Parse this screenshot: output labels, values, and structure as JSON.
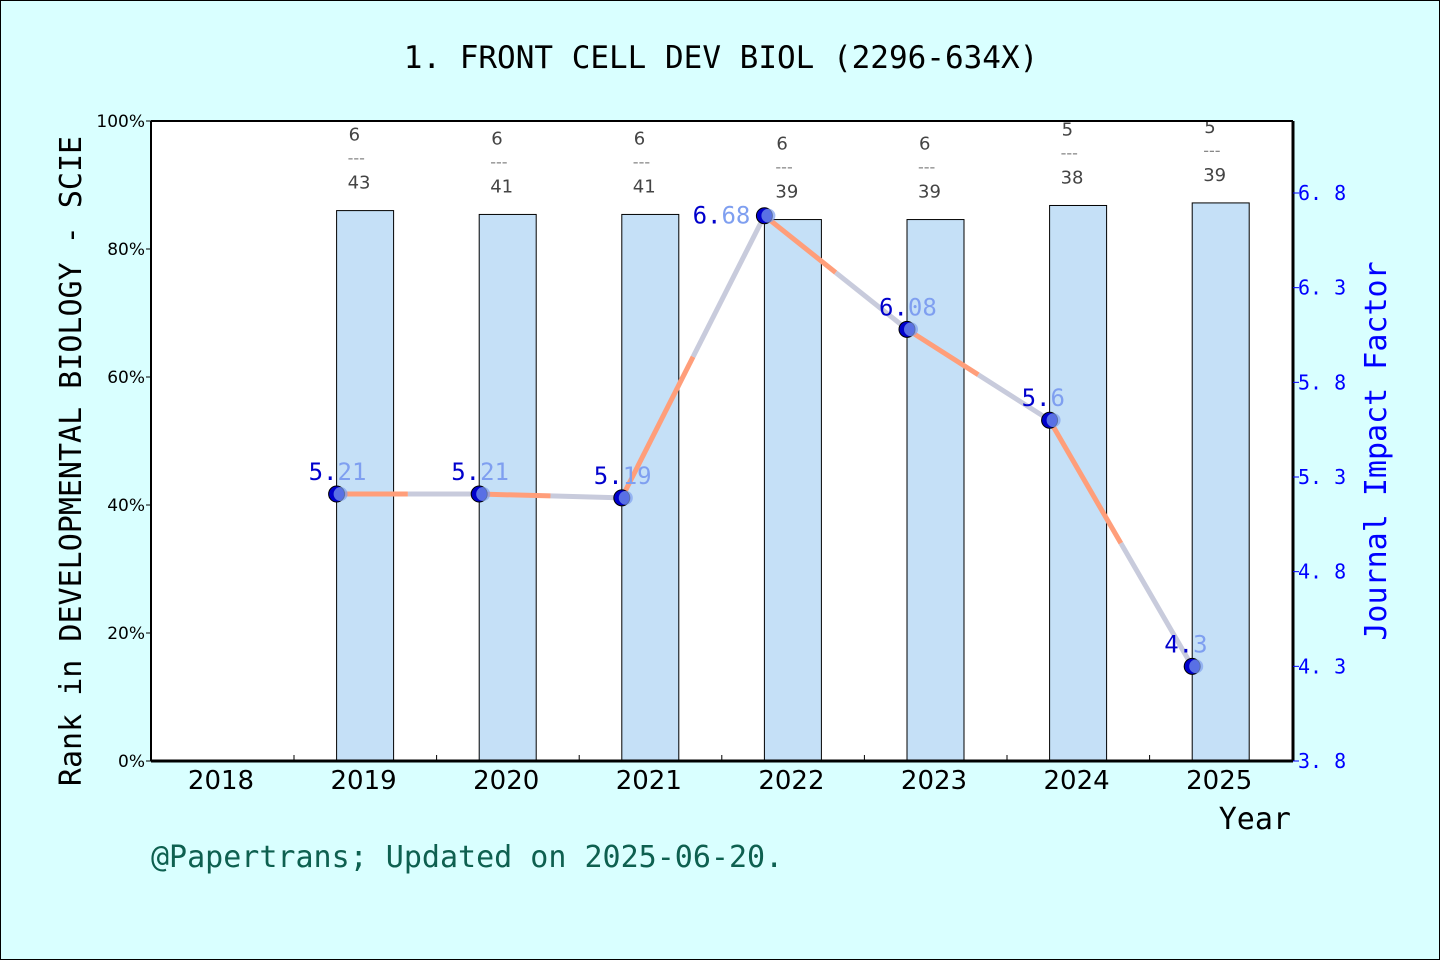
{
  "chart_data": {
    "type": "bar+line",
    "title": "1. FRONT CELL DEV BIOL (2296-634X)",
    "xlabel": "Year",
    "ylabel_left": "Rank in DEVELOPMENTAL BIOLOGY - SCIE",
    "ylabel_right": "Journal Impact Factor",
    "categories": [
      "2018",
      "2019",
      "2020",
      "2021",
      "2022",
      "2023",
      "2024",
      "2025"
    ],
    "left_axis": {
      "ylim": [
        0,
        100
      ],
      "ticks": [
        "0%",
        "20%",
        "40%",
        "60%",
        "80%",
        "100%"
      ]
    },
    "right_axis": {
      "ylim": [
        3.8,
        7.2
      ],
      "ticks": [
        "3.8",
        "4.3",
        "4.8",
        "5.3",
        "5.8",
        "6.3",
        "6.8"
      ]
    },
    "rank_bars": [
      {
        "year": "2019",
        "rank": 6,
        "total": 43,
        "percentile": 86.0
      },
      {
        "year": "2020",
        "rank": 6,
        "total": 41,
        "percentile": 85.4
      },
      {
        "year": "2021",
        "rank": 6,
        "total": 41,
        "percentile": 85.4
      },
      {
        "year": "2022",
        "rank": 6,
        "total": 39,
        "percentile": 84.6
      },
      {
        "year": "2023",
        "rank": 6,
        "total": 39,
        "percentile": 84.6
      },
      {
        "year": "2024",
        "rank": 5,
        "total": 38,
        "percentile": 86.8
      },
      {
        "year": "2025",
        "rank": 5,
        "total": 39,
        "percentile": 87.2
      }
    ],
    "impact_factor": [
      {
        "year": "2019",
        "value": 5.21,
        "label": [
          "5.",
          "21"
        ]
      },
      {
        "year": "2020",
        "value": 5.21,
        "label": [
          "5.",
          "21"
        ]
      },
      {
        "year": "2021",
        "value": 5.19,
        "label": [
          "5.",
          "19"
        ]
      },
      {
        "year": "2022",
        "value": 6.68,
        "label": [
          "6.",
          "68"
        ]
      },
      {
        "year": "2023",
        "value": 6.08,
        "label": [
          "6.",
          "08"
        ]
      },
      {
        "year": "2024",
        "value": 5.6,
        "label": [
          "5.",
          "6"
        ]
      },
      {
        "year": "2025",
        "value": 4.3,
        "label": [
          "4.",
          "3"
        ]
      }
    ],
    "colors": {
      "bar": "#c5e0f7",
      "line_a": "#ff9e7a",
      "line_b": "#c8cbdc",
      "point": "#0000cc",
      "right_axis": "#0000ff",
      "label_light": "#7f9ff0",
      "background": "#d9ffff"
    }
  },
  "footer": "@Papertrans; Updated on 2025-06-20."
}
